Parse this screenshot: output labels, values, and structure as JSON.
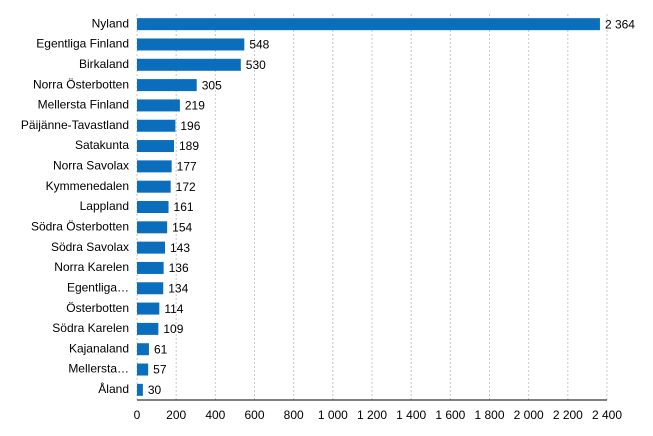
{
  "chart_data": {
    "type": "hbar",
    "categories": [
      "Nyland",
      "Egentliga Finland",
      "Birkaland",
      "Norra Österbotten",
      "Mellersta Finland",
      "Päijänne-Tavastland",
      "Satakunta",
      "Norra Savolax",
      "Kymmenedalen",
      "Lappland",
      "Södra Österbotten",
      "Södra Savolax",
      "Norra Karelen",
      "Egentliga…",
      "Österbotten",
      "Södra Karelen",
      "Kajanaland",
      "Mellersta…",
      "Åland"
    ],
    "values": [
      2364,
      548,
      530,
      305,
      219,
      196,
      189,
      177,
      172,
      161,
      154,
      143,
      136,
      134,
      114,
      109,
      61,
      57,
      30
    ],
    "value_labels": [
      "2 364",
      "548",
      "530",
      "305",
      "219",
      "196",
      "189",
      "177",
      "172",
      "161",
      "154",
      "143",
      "136",
      "134",
      "114",
      "109",
      "61",
      "57",
      "30"
    ],
    "color": "#0a6ebd",
    "xlim": [
      0,
      2400
    ],
    "xticks": [
      0,
      200,
      400,
      600,
      800,
      {
        "value": 1000,
        "label": "1 000"
      },
      {
        "value": 1200,
        "label": "1 200"
      },
      {
        "value": 1400,
        "label": "1 400"
      },
      {
        "value": 1600,
        "label": "1 600"
      },
      {
        "value": 1800,
        "label": "1 800"
      },
      {
        "value": 2000,
        "label": "2 000"
      },
      {
        "value": 2200,
        "label": "2 200"
      },
      {
        "value": 2400,
        "label": "2 400"
      }
    ],
    "grid": true
  }
}
